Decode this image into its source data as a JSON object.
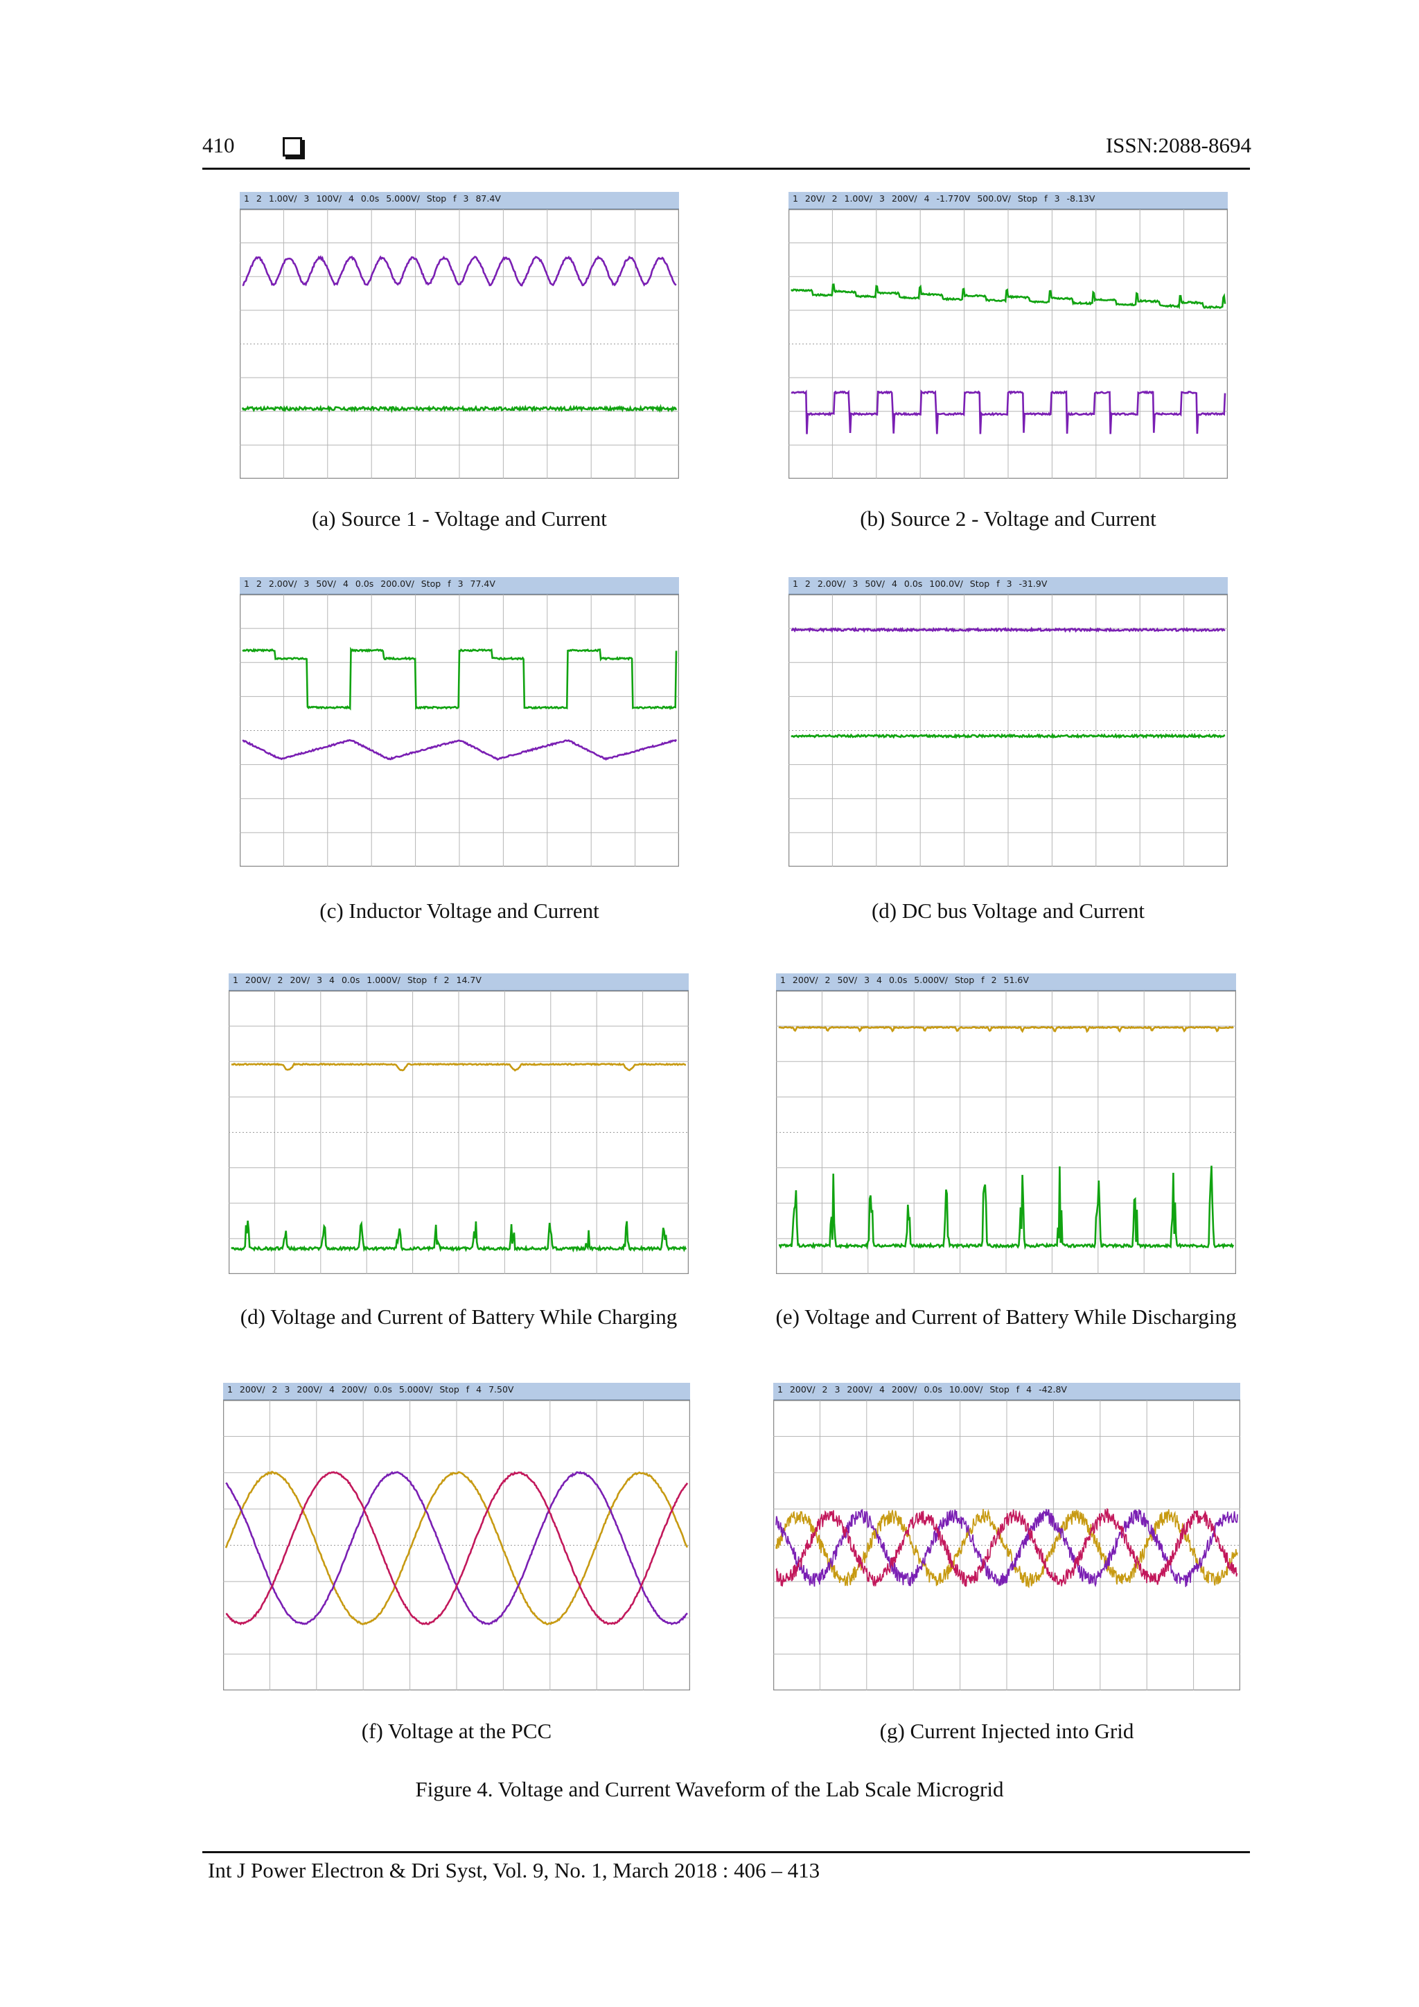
{
  "header": {
    "page_number": "410",
    "issn": "ISSN:2088-8694"
  },
  "panels": [
    {
      "id": "a",
      "caption": "(a) Source 1 - Voltage and Current",
      "status": "1  2 1.00V/  3 100V/  4    0.0s  5.000V/  Stop  f  3  87.4V",
      "traces": [
        {
          "wave": "hump",
          "color": "#7a1fb3",
          "level": 0.23,
          "amp": 0.1,
          "cycles": 14
        },
        {
          "wave": "flat",
          "color": "#11a311",
          "level": 0.74,
          "amp": 0.006,
          "cycles": 0
        }
      ]
    },
    {
      "id": "b",
      "caption": "(b) Source 2 - Voltage and Current",
      "status": "1 20V/  2 1.00V/  3 200V/  4   -1.770V  500.0V/  Stop  f  3  -8.13V",
      "traces": [
        {
          "wave": "steps",
          "color": "#11a311",
          "level": 0.3,
          "amp": 0.035,
          "cycles": 10
        },
        {
          "wave": "square_spiky",
          "color": "#7a1fb3",
          "level": 0.72,
          "amp": 0.08,
          "cycles": 10
        }
      ]
    },
    {
      "id": "c",
      "caption": "(c) Inductor Voltage and Current",
      "status": "1  2 2.00V/  3 50V/  4    0.0s  200.0V/  Stop  f  3  77.4V",
      "traces": [
        {
          "wave": "square",
          "color": "#11a311",
          "level": 0.3,
          "amp": 0.21,
          "cycles": 4
        },
        {
          "wave": "sawtooth",
          "color": "#7a1fb3",
          "level": 0.57,
          "amp": 0.07,
          "cycles": 4
        }
      ]
    },
    {
      "id": "d",
      "caption": "(d) DC bus Voltage and Current",
      "status": "1  2 2.00V/  3 50V/  4    0.0s  100.0V/  Stop  f  3  -31.9V",
      "traces": [
        {
          "wave": "flat",
          "color": "#7a1fb3",
          "level": 0.13,
          "amp": 0.004,
          "cycles": 0
        },
        {
          "wave": "flat",
          "color": "#11a311",
          "level": 0.52,
          "amp": 0.004,
          "cycles": 0
        }
      ]
    },
    {
      "id": "e",
      "caption": "(d) Voltage and Current of Battery While Charging",
      "status": "1 200V/  2 20V/  3    4    0.0s  1.000V/  Stop  f  2  14.7V",
      "traces": [
        {
          "wave": "dips",
          "color": "#c79a12",
          "level": 0.26,
          "amp": 0.02,
          "cycles": 4
        },
        {
          "wave": "spikes",
          "color": "#11a311",
          "level": 0.91,
          "amp": 0.13,
          "cycles": 12
        }
      ]
    },
    {
      "id": "f",
      "caption": "(e) Voltage and Current of Battery While Discharging",
      "status": "1 200V/  2 50V/  3    4    0.0s  5.000V/  Stop  f  2  51.6V",
      "traces": [
        {
          "wave": "dips",
          "color": "#c79a12",
          "level": 0.13,
          "amp": 0.012,
          "cycles": 14
        },
        {
          "wave": "spikes",
          "color": "#11a311",
          "level": 0.9,
          "amp": 0.3,
          "cycles": 12
        }
      ]
    },
    {
      "id": "g",
      "caption": "(f) Voltage at the PCC",
      "status": "1 200V/  2    3 200V/  4 200V/    0.0s  5.000V/  Stop  f  4  7.50V",
      "traces": [
        {
          "wave": "sine",
          "color": "#c79a12",
          "level": 0.51,
          "amp": 0.26,
          "cycles": 2.5,
          "phase": 0.0
        },
        {
          "wave": "sine",
          "color": "#7a1fb3",
          "level": 0.51,
          "amp": 0.26,
          "cycles": 2.5,
          "phase": 2.094
        },
        {
          "wave": "sine",
          "color": "#c2185b",
          "level": 0.51,
          "amp": 0.26,
          "cycles": 2.5,
          "phase": 4.189
        }
      ]
    },
    {
      "id": "h",
      "caption": "(g) Current Injected into Grid",
      "status": "1 200V/  2    3 200V/  4 200V/    0.0s  10.00V/  Stop  f  4  -42.8V",
      "traces": [
        {
          "wave": "noisy_sine",
          "color": "#c79a12",
          "level": 0.51,
          "amp": 0.11,
          "cycles": 5,
          "phase": 0.0
        },
        {
          "wave": "noisy_sine",
          "color": "#7a1fb3",
          "level": 0.51,
          "amp": 0.11,
          "cycles": 5,
          "phase": 2.094
        },
        {
          "wave": "noisy_sine",
          "color": "#c2185b",
          "level": 0.51,
          "amp": 0.11,
          "cycles": 5,
          "phase": 4.189
        }
      ]
    }
  ],
  "figure_caption": "Figure 4. Voltage and Current Waveform of the Lab Scale Microgrid",
  "footer": "Int J Power Electron & Dri Syst, Vol. 9, No. 1, March 2018 :  406 – 413"
}
